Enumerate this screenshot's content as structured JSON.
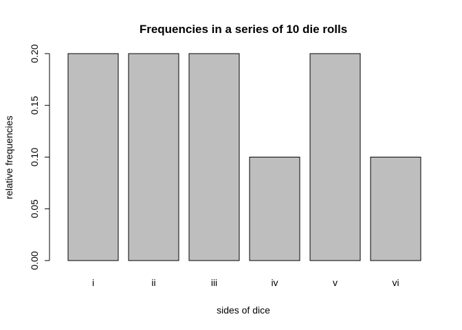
{
  "chart_data": {
    "type": "bar",
    "title": "Frequencies in a series of 10 die rolls",
    "xlabel": "sides of dice",
    "ylabel": "relative frequencies",
    "categories": [
      "i",
      "ii",
      "iii",
      "iv",
      "v",
      "vi"
    ],
    "values": [
      0.2,
      0.2,
      0.2,
      0.1,
      0.2,
      0.1
    ],
    "ylim": [
      0,
      0.2
    ],
    "yticks": [
      "0.00",
      "0.05",
      "0.10",
      "0.15",
      "0.20"
    ],
    "grid": false,
    "legend": "none",
    "bar_color": "#bebebe"
  }
}
